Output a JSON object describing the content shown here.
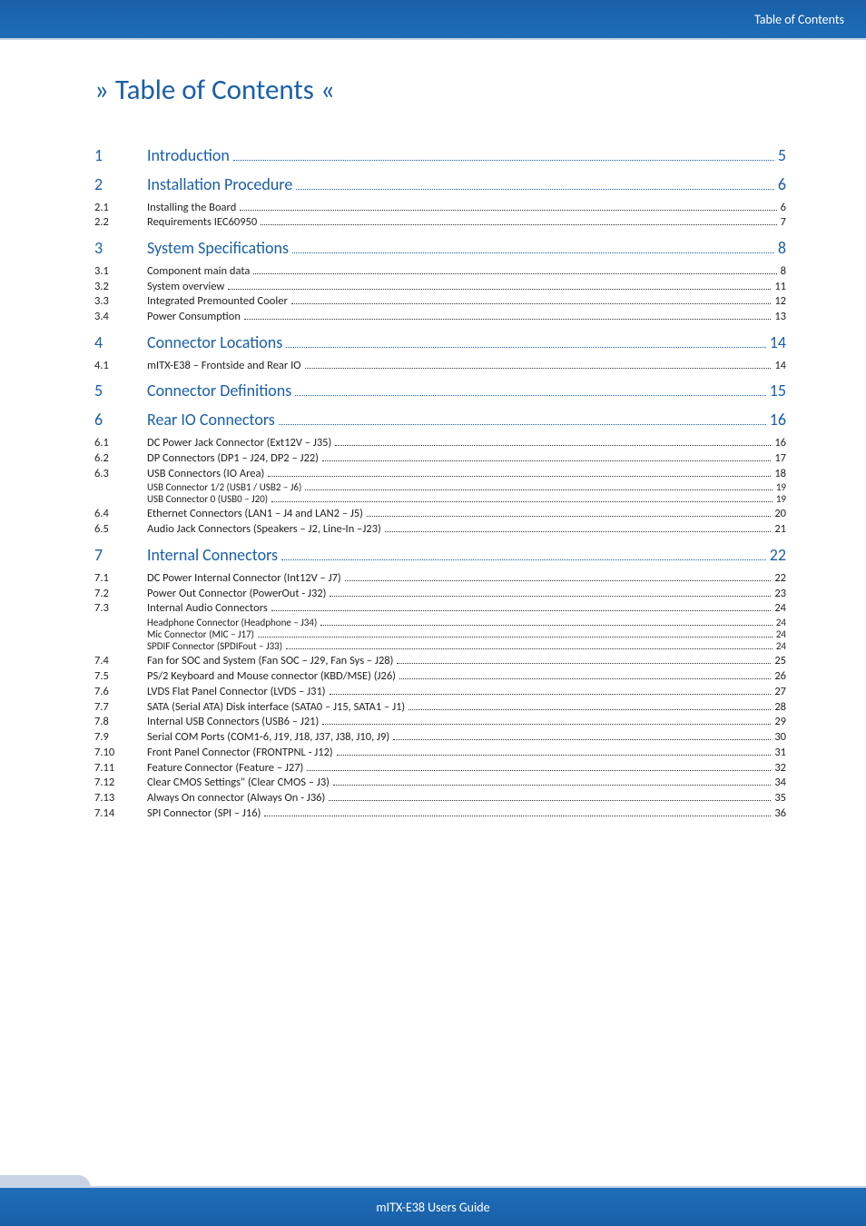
{
  "header": {
    "label": "Table of Contents"
  },
  "title": "» Table of Contents «",
  "footer": {
    "label": "mITX-E38 Users Guide"
  },
  "colors": {
    "accent": "#1a5fa8",
    "text": "#222222",
    "leader": "#333333",
    "header_bg_top": "#1a5fa8",
    "header_bg_bottom": "#1e6db8"
  },
  "toc": [
    {
      "level": 1,
      "num": "1",
      "text": "Introduction",
      "page": "5"
    },
    {
      "level": 1,
      "num": "2",
      "text": "Installation Procedure",
      "page": "6"
    },
    {
      "level": 2,
      "num": "2.1",
      "text": "Installing the Board",
      "page": "6"
    },
    {
      "level": 2,
      "num": "2.2",
      "text": "Requirements IEC60950",
      "page": "7"
    },
    {
      "level": 1,
      "num": "3",
      "text": "System Specifications",
      "page": "8"
    },
    {
      "level": 2,
      "num": "3.1",
      "text": "Component main data",
      "page": "8"
    },
    {
      "level": 2,
      "num": "3.2",
      "text": "System overview",
      "page": "11"
    },
    {
      "level": 2,
      "num": "3.3",
      "text": "Integrated Premounted Cooler",
      "page": "12"
    },
    {
      "level": 2,
      "num": "3.4",
      "text": "Power Consumption",
      "page": "13"
    },
    {
      "level": 1,
      "num": "4",
      "text": "Connector Locations",
      "page": "14"
    },
    {
      "level": 2,
      "num": "4.1",
      "text": "mITX-E38 – Frontside and Rear IO",
      "page": "14"
    },
    {
      "level": 1,
      "num": "5",
      "text": "Connector Definitions",
      "page": "15"
    },
    {
      "level": 1,
      "num": "6",
      "text": "Rear IO Connectors",
      "page": "16"
    },
    {
      "level": 2,
      "num": "6.1",
      "text": "DC Power Jack Connector (Ext12V – J35)",
      "page": "16"
    },
    {
      "level": 2,
      "num": "6.2",
      "text": "DP Connectors (DP1 – J24, DP2 – J22)",
      "page": "17"
    },
    {
      "level": 2,
      "num": "6.3",
      "text": "USB Connectors (IO Area)",
      "page": "18"
    },
    {
      "level": 3,
      "num": "",
      "text": "USB Connector 1/2 (USB1 / USB2 – J6)",
      "page": "19"
    },
    {
      "level": 3,
      "num": "",
      "text": "USB Connector 0 (USB0 – J20)",
      "page": "19"
    },
    {
      "level": 2,
      "num": "6.4",
      "text": "Ethernet Connectors (LAN1 – J4 and LAN2 – J5)",
      "page": "20"
    },
    {
      "level": 2,
      "num": "6.5",
      "text": "Audio Jack Connectors (Speakers – J2, Line-In –J23)",
      "page": "21"
    },
    {
      "level": 1,
      "num": "7",
      "text": "Internal Connectors",
      "page": "22"
    },
    {
      "level": 2,
      "num": "7.1",
      "text": "DC Power Internal Connector (Int12V – J7)",
      "page": "22"
    },
    {
      "level": 2,
      "num": "7.2",
      "text": "Power Out Connector (PowerOut - J32)",
      "page": "23"
    },
    {
      "level": 2,
      "num": "7.3",
      "text": "Internal Audio Connectors",
      "page": "24"
    },
    {
      "level": 3,
      "num": "",
      "text": "Headphone Connector (Headphone – J34)",
      "page": "24"
    },
    {
      "level": 3,
      "num": "",
      "text": "Mic Connector (MIC – J17)",
      "page": "24"
    },
    {
      "level": 3,
      "num": "",
      "text": "SPDIF Connector (SPDIFout – J33)",
      "page": "24"
    },
    {
      "level": 2,
      "num": "7.4",
      "text": "Fan for SOC and System (Fan SOC – J29, Fan Sys – J28)",
      "page": "25"
    },
    {
      "level": 2,
      "num": "7.5",
      "text": "PS/2 Keyboard and Mouse connector (KBD/MSE) (J26)",
      "page": "26"
    },
    {
      "level": 2,
      "num": "7.6",
      "text": "LVDS Flat Panel Connector (LVDS – J31)",
      "page": "27"
    },
    {
      "level": 2,
      "num": "7.7",
      "text": "SATA (Serial ATA) Disk interface (SATA0 – J15, SATA1 – J1)",
      "page": "28"
    },
    {
      "level": 2,
      "num": "7.8",
      "text": "Internal USB Connectors (USB6 – J21)",
      "page": "29"
    },
    {
      "level": 2,
      "num": "7.9",
      "text": "Serial COM Ports (COM1-6, J19, J18, J37, J38, J10, J9)",
      "page": "30"
    },
    {
      "level": 2,
      "num": "7.10",
      "text": "Front Panel Connector (FRONTPNL - J12)",
      "page": "31"
    },
    {
      "level": 2,
      "num": "7.11",
      "text": "Feature Connector (Feature – J27)",
      "page": "32"
    },
    {
      "level": 2,
      "num": "7.12",
      "text": "Clear CMOS Settings\" (Clear CMOS – J3)",
      "page": "34"
    },
    {
      "level": 2,
      "num": "7.13",
      "text": "Always On connector (Always On - J36)",
      "page": "35"
    },
    {
      "level": 2,
      "num": "7.14",
      "text": "SPI Connector (SPI – J16)",
      "page": "36"
    }
  ]
}
